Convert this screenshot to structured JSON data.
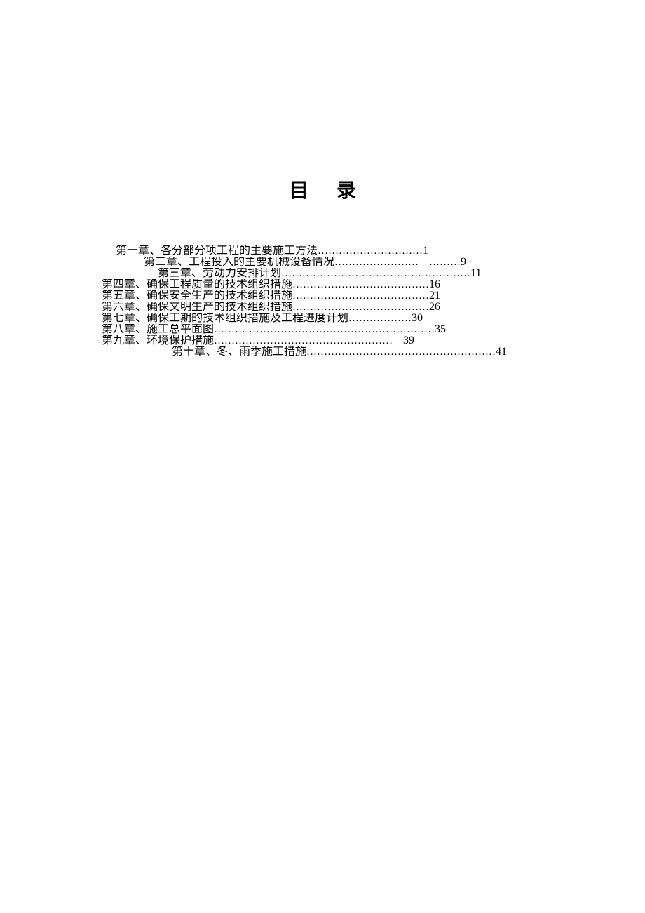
{
  "title": "目录",
  "toc": {
    "entries": [
      {
        "chapter": "第一章、",
        "title": "各分部分项工程的主要施工方法",
        "dots": "…………………………",
        "page": "1",
        "indent_class": "entry-0"
      },
      {
        "chapter": "第二章、",
        "title": "工程投入的主要机械设备情况",
        "dots": "……………………　………",
        "page": "9",
        "indent_class": "entry-1"
      },
      {
        "chapter": "第三章、",
        "title": "劳动力安排计划",
        "dots": "………………………………………………",
        "page": "11",
        "indent_class": "entry-2"
      },
      {
        "chapter": "第四章、",
        "title": "确保工程质量的技术组织措施",
        "dots": "…………………………………",
        "page": "16",
        "indent_class": "entry-3"
      },
      {
        "chapter": "第五章、",
        "title": "确保安全生产的技术组织措施",
        "dots": "…………………………………",
        "page": "21",
        "indent_class": "entry-4"
      },
      {
        "chapter": "第六章、",
        "title": "确保文明生产的技术组织措施",
        "dots": "…………………………………",
        "page": "26",
        "indent_class": "entry-5"
      },
      {
        "chapter": "第七章、",
        "title": "确保工期的技术组织措施及工程进度计划",
        "dots": "………………",
        "page": "30",
        "indent_class": "entry-6"
      },
      {
        "chapter": "第八章、",
        "title": "施工总平面图",
        "dots": "………………………………………………………",
        "page": "35",
        "indent_class": "entry-7"
      },
      {
        "chapter": "第九章、",
        "title": "环境保护措施",
        "dots": "……………………………………………　",
        "page": "39",
        "indent_class": "entry-8"
      },
      {
        "chapter": "第十章、",
        "title": "冬、雨季施工措施",
        "dots": "………………………………………………",
        "page": "41",
        "indent_class": "entry-9"
      }
    ]
  },
  "styling": {
    "background_color": "#ffffff",
    "text_color": "#000000",
    "title_fontsize": 28,
    "body_fontsize": 16,
    "line_height": 15,
    "font_family": "SimSun"
  }
}
